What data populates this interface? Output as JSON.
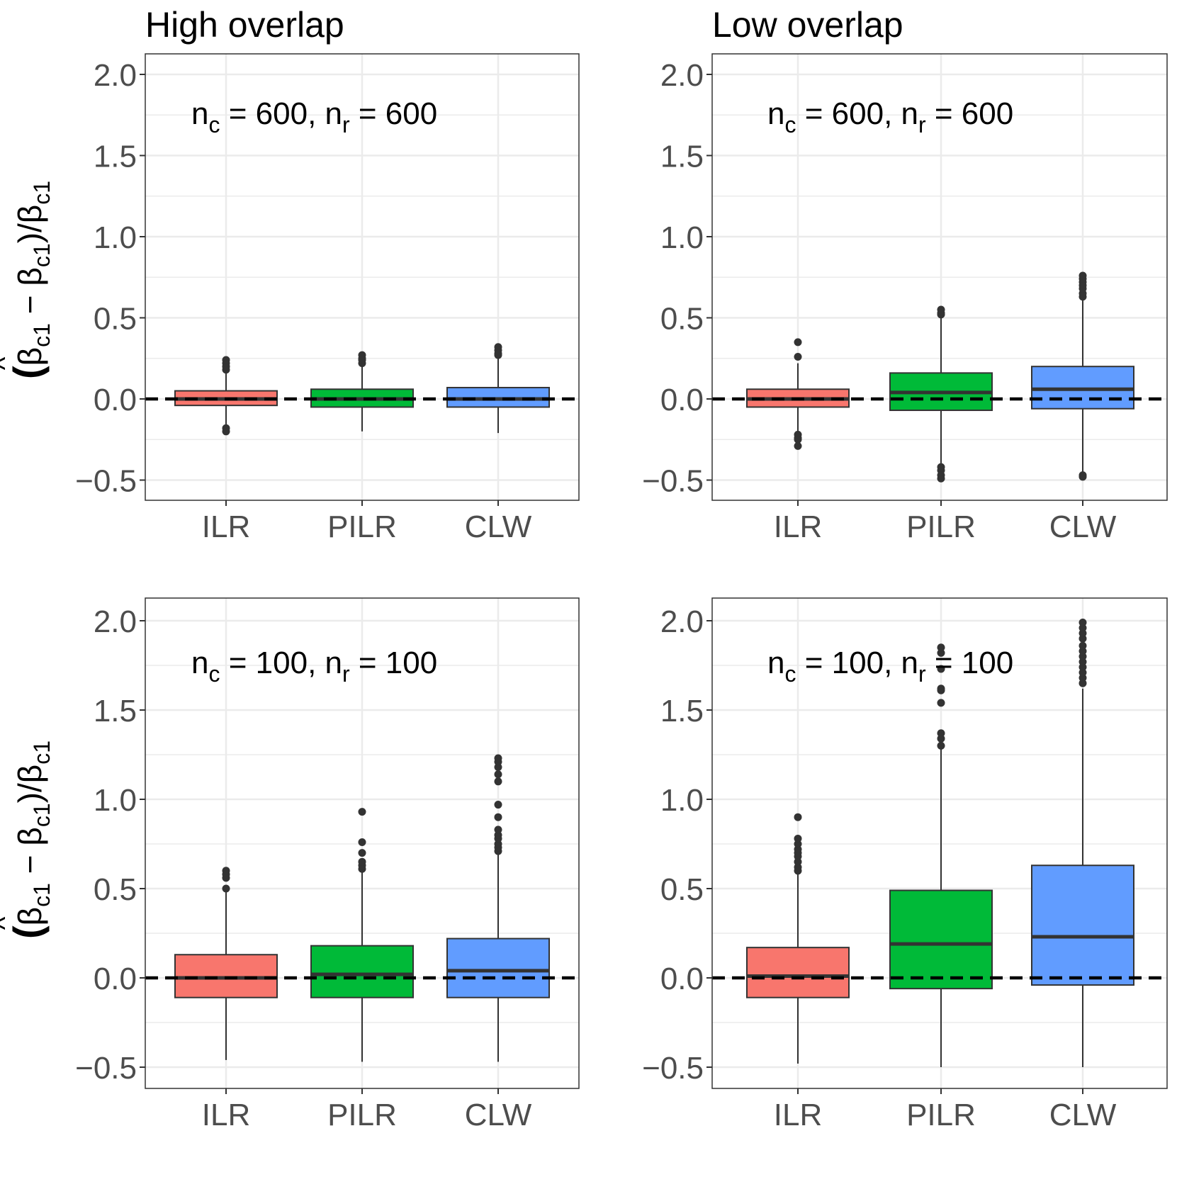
{
  "columns": [
    {
      "title": "High overlap"
    },
    {
      "title": "Low overlap"
    }
  ],
  "y_axis_label": {
    "hat_symbol": "^",
    "open": "(",
    "beta": "β",
    "subscript": "c1",
    "minus": "−",
    "close_div": ")/"
  },
  "annotation_parts": {
    "n": "n",
    "sub_c": "c",
    "sub_r": "r",
    "eq": "=",
    "comma": ","
  },
  "colors": {
    "ILR": "#F8766D",
    "PILR": "#00BA38",
    "CLW": "#619CFF",
    "box_outline": "#333333",
    "grid": "#EBEBEB",
    "axis_text": "#4D4D4D",
    "reference_line": "#000000"
  },
  "chart_data": [
    {
      "type": "boxplot",
      "panel": "top-left",
      "column_title": "High overlap",
      "annotation": {
        "nc": "600",
        "nr": "600"
      },
      "categories": [
        "ILR",
        "PILR",
        "CLW"
      ],
      "ylim": [
        -0.57,
        2.12
      ],
      "yticks": [
        -0.5,
        0.0,
        0.5,
        1.0,
        1.5,
        2.0
      ],
      "ytick_labels": [
        "−0.5",
        "0.0",
        "0.5",
        "1.0",
        "1.5",
        "2.0"
      ],
      "reference_line": 0,
      "grid": true,
      "boxes": [
        {
          "name": "ILR",
          "q1": -0.04,
          "median": 0.0,
          "q3": 0.05,
          "whisker_low": -0.16,
          "whisker_high": 0.17,
          "outliers": [
            0.18,
            0.2,
            0.22,
            0.24,
            -0.18,
            -0.2
          ]
        },
        {
          "name": "PILR",
          "q1": -0.05,
          "median": 0.0,
          "q3": 0.06,
          "whisker_low": -0.2,
          "whisker_high": 0.21,
          "outliers": [
            0.22,
            0.24,
            0.25,
            0.27
          ]
        },
        {
          "name": "CLW",
          "q1": -0.05,
          "median": 0.0,
          "q3": 0.07,
          "whisker_low": -0.21,
          "whisker_high": 0.25,
          "outliers": [
            0.27,
            0.28,
            0.3,
            0.32
          ]
        }
      ]
    },
    {
      "type": "boxplot",
      "panel": "top-right",
      "column_title": "Low overlap",
      "annotation": {
        "nc": "600",
        "nr": "600"
      },
      "categories": [
        "ILR",
        "PILR",
        "CLW"
      ],
      "ylim": [
        -0.57,
        2.12
      ],
      "yticks": [
        -0.5,
        0.0,
        0.5,
        1.0,
        1.5,
        2.0
      ],
      "ytick_labels": [
        "−0.5",
        "0.0",
        "0.5",
        "1.0",
        "1.5",
        "2.0"
      ],
      "reference_line": 0,
      "grid": true,
      "boxes": [
        {
          "name": "ILR",
          "q1": -0.05,
          "median": 0.0,
          "q3": 0.06,
          "whisker_low": -0.21,
          "whisker_high": 0.22,
          "outliers": [
            0.26,
            0.35,
            -0.22,
            -0.24,
            -0.25,
            -0.29
          ]
        },
        {
          "name": "PILR",
          "q1": -0.07,
          "median": 0.04,
          "q3": 0.16,
          "whisker_low": -0.41,
          "whisker_high": 0.5,
          "outliers": [
            0.52,
            0.53,
            0.55,
            -0.42,
            -0.44,
            -0.47,
            -0.49
          ]
        },
        {
          "name": "CLW",
          "q1": -0.06,
          "median": 0.06,
          "q3": 0.2,
          "whisker_low": -0.46,
          "whisker_high": 0.61,
          "outliers": [
            0.63,
            0.65,
            0.68,
            0.7,
            0.72,
            0.74,
            0.76,
            -0.47,
            -0.48
          ]
        }
      ]
    },
    {
      "type": "boxplot",
      "panel": "bottom-left",
      "column_title": "High overlap",
      "annotation": {
        "nc": "100",
        "nr": "100"
      },
      "categories": [
        "ILR",
        "PILR",
        "CLW"
      ],
      "ylim": [
        -0.57,
        2.12
      ],
      "yticks": [
        -0.5,
        0.0,
        0.5,
        1.0,
        1.5,
        2.0
      ],
      "ytick_labels": [
        "−0.5",
        "0.0",
        "0.5",
        "1.0",
        "1.5",
        "2.0"
      ],
      "reference_line": 0,
      "grid": true,
      "boxes": [
        {
          "name": "ILR",
          "q1": -0.11,
          "median": 0.0,
          "q3": 0.13,
          "whisker_low": -0.46,
          "whisker_high": 0.48,
          "outliers": [
            0.5,
            0.56,
            0.58,
            0.6
          ]
        },
        {
          "name": "PILR",
          "q1": -0.11,
          "median": 0.02,
          "q3": 0.18,
          "whisker_low": -0.47,
          "whisker_high": 0.59,
          "outliers": [
            0.61,
            0.63,
            0.65,
            0.7,
            0.76,
            0.93
          ]
        },
        {
          "name": "CLW",
          "q1": -0.11,
          "median": 0.04,
          "q3": 0.22,
          "whisker_low": -0.47,
          "whisker_high": 0.69,
          "outliers": [
            0.71,
            0.73,
            0.75,
            0.78,
            0.8,
            0.83,
            0.9,
            0.97,
            1.1,
            1.14,
            1.18,
            1.21,
            1.23
          ]
        }
      ]
    },
    {
      "type": "boxplot",
      "panel": "bottom-right",
      "column_title": "Low overlap",
      "annotation": {
        "nc": "100",
        "nr": "100"
      },
      "categories": [
        "ILR",
        "PILR",
        "CLW"
      ],
      "ylim": [
        -0.57,
        2.12
      ],
      "yticks": [
        -0.5,
        0.0,
        0.5,
        1.0,
        1.5,
        2.0
      ],
      "ytick_labels": [
        "−0.5",
        "0.0",
        "0.5",
        "1.0",
        "1.5",
        "2.0"
      ],
      "reference_line": 0,
      "grid": true,
      "boxes": [
        {
          "name": "ILR",
          "q1": -0.11,
          "median": 0.01,
          "q3": 0.17,
          "whisker_low": -0.48,
          "whisker_high": 0.58,
          "outliers": [
            0.6,
            0.62,
            0.65,
            0.68,
            0.7,
            0.72,
            0.75,
            0.78,
            0.9
          ]
        },
        {
          "name": "PILR",
          "q1": -0.06,
          "median": 0.19,
          "q3": 0.49,
          "whisker_low": -0.5,
          "whisker_high": 1.28,
          "outliers": [
            1.3,
            1.34,
            1.37,
            1.54,
            1.61,
            1.62,
            1.73,
            1.82,
            1.85
          ]
        },
        {
          "name": "CLW",
          "q1": -0.04,
          "median": 0.23,
          "q3": 0.63,
          "whisker_low": -0.5,
          "whisker_high": 1.62,
          "outliers": [
            1.65,
            1.68,
            1.71,
            1.74,
            1.77,
            1.8,
            1.83,
            1.86,
            1.9,
            1.93,
            1.96,
            1.99
          ]
        }
      ]
    }
  ]
}
